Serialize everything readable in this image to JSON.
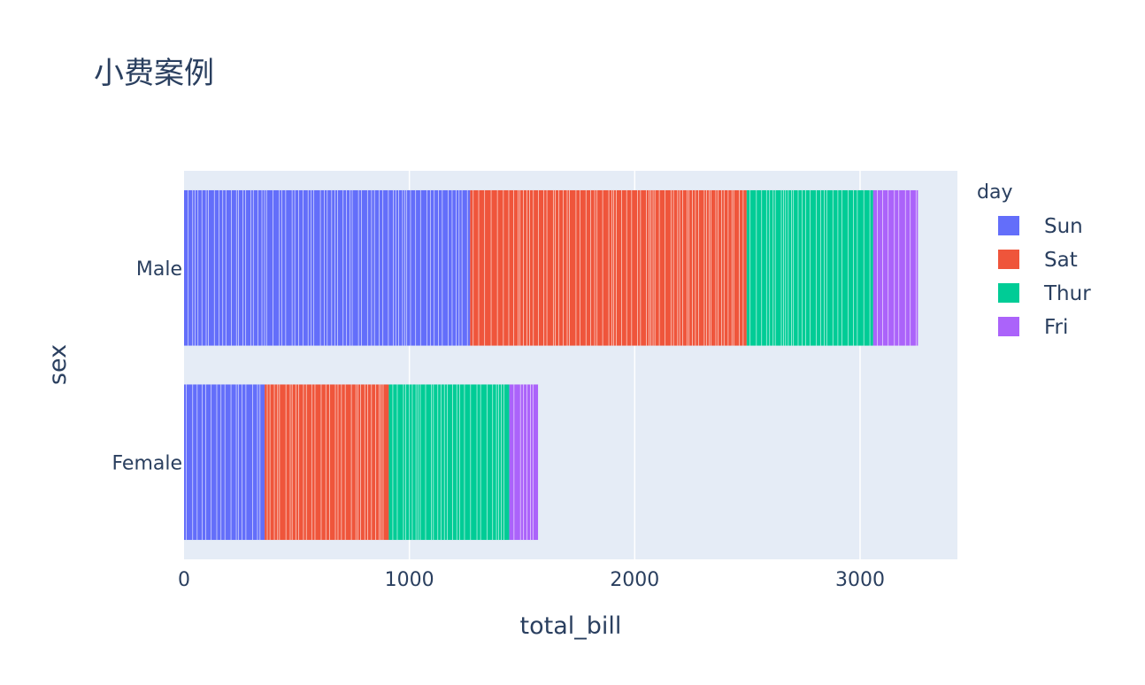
{
  "chart_data": {
    "type": "bar",
    "orientation": "horizontal",
    "barmode": "stack",
    "title": "小费案例",
    "xlabel": "total_bill",
    "ylabel": "sex",
    "xlim": [
      0,
      3432
    ],
    "x_ticks": [
      "0",
      "1000",
      "2000",
      "3000"
    ],
    "x_tick_values": [
      0,
      1000,
      2000,
      3000
    ],
    "categories": [
      "Male",
      "Female"
    ],
    "legend_title": "day",
    "legend_position": "right",
    "grid": true,
    "series": [
      {
        "name": "Sun",
        "color": "#636efa",
        "values": [
          1269.46,
          357.7
        ]
      },
      {
        "name": "Sat",
        "color": "#ef553b",
        "values": [
          1227.35,
          551.05
        ]
      },
      {
        "name": "Thur",
        "color": "#00cc96",
        "values": [
          561.44,
          534.89
        ]
      },
      {
        "name": "Fri",
        "color": "#ab63fa",
        "values": [
          198.57,
          127.31
        ]
      }
    ]
  }
}
